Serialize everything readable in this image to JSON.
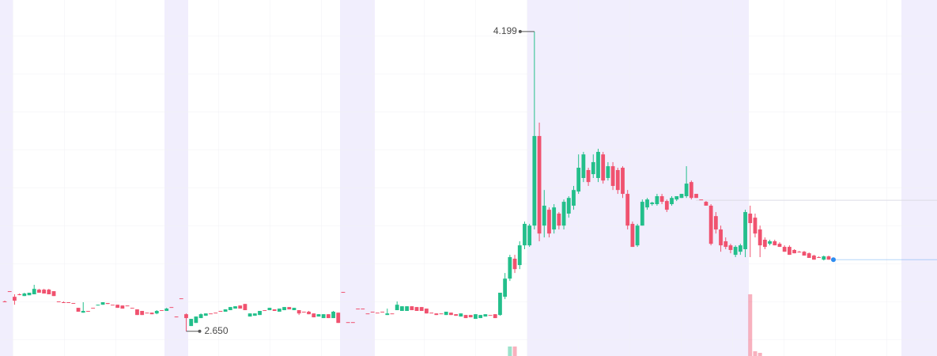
{
  "chart_data": {
    "type": "candlestick",
    "max_label": "4.199",
    "min_label": "2.650",
    "up_color": "#23bf8b",
    "down_color": "#f0526f",
    "last_price_color": "#2d8cf0",
    "reference_line": 3.327,
    "ylim": [
      2.522,
      4.362
    ],
    "volume_ylim": [
      0,
      450
    ],
    "ohlc": [
      [
        2.804,
        2.808,
        2.8,
        2.804
      ],
      [
        2.857,
        2.857,
        2.857,
        2.857
      ],
      [
        2.828,
        2.841,
        2.787,
        2.808
      ],
      [
        2.841,
        2.845,
        2.836,
        2.841
      ],
      [
        2.832,
        2.849,
        2.832,
        2.845
      ],
      [
        2.836,
        2.849,
        2.836,
        2.849
      ],
      [
        2.841,
        2.89,
        2.841,
        2.869
      ],
      [
        2.865,
        2.869,
        2.849,
        2.849
      ],
      [
        2.865,
        2.869,
        2.845,
        2.845
      ],
      [
        2.865,
        2.869,
        2.841,
        2.841
      ],
      [
        2.857,
        2.857,
        2.832,
        2.832
      ],
      [
        2.804,
        2.804,
        2.804,
        2.804
      ],
      [
        2.8,
        2.804,
        2.8,
        2.8
      ],
      [
        2.8,
        2.8,
        2.796,
        2.796
      ],
      [
        2.796,
        2.796,
        2.796,
        2.796
      ],
      [
        2.771,
        2.771,
        2.751,
        2.751
      ],
      [
        2.746,
        2.8,
        2.746,
        2.755
      ],
      [
        2.755,
        2.755,
        2.751,
        2.751
      ],
      [
        2.771,
        2.771,
        2.771,
        2.771
      ],
      [
        2.783,
        2.787,
        2.783,
        2.787
      ],
      [
        2.787,
        2.8,
        2.787,
        2.8
      ],
      [
        2.796,
        2.796,
        2.791,
        2.791
      ],
      [
        2.787,
        2.787,
        2.787,
        2.787
      ],
      [
        2.787,
        2.787,
        2.771,
        2.771
      ],
      [
        2.783,
        2.783,
        2.767,
        2.767
      ],
      [
        2.783,
        2.783,
        2.783,
        2.783
      ],
      [
        2.771,
        2.771,
        2.771,
        2.771
      ],
      [
        2.763,
        2.763,
        2.734,
        2.734
      ],
      [
        2.755,
        2.755,
        2.734,
        2.734
      ],
      [
        2.746,
        2.746,
        2.746,
        2.746
      ],
      [
        2.746,
        2.746,
        2.738,
        2.738
      ],
      [
        2.742,
        2.759,
        2.738,
        2.755
      ],
      [
        2.759,
        2.759,
        2.759,
        2.759
      ],
      [
        2.755,
        2.771,
        2.755,
        2.767
      ],
      [
        2.775,
        2.775,
        2.775,
        2.775
      ],
      [
        2.726,
        2.726,
        2.722,
        2.722
      ],
      [
        2.82,
        2.82,
        2.82,
        2.82
      ],
      [
        2.738,
        2.742,
        2.65,
        2.718
      ],
      [
        2.677,
        2.714,
        2.677,
        2.714
      ],
      [
        2.693,
        2.726,
        2.693,
        2.726
      ],
      [
        2.718,
        2.742,
        2.718,
        2.738
      ],
      [
        2.73,
        2.742,
        2.73,
        2.742
      ],
      [
        2.742,
        2.742,
        2.742,
        2.742
      ],
      [
        2.746,
        2.746,
        2.746,
        2.746
      ],
      [
        2.755,
        2.755,
        2.755,
        2.755
      ],
      [
        2.751,
        2.763,
        2.751,
        2.763
      ],
      [
        2.759,
        2.775,
        2.759,
        2.775
      ],
      [
        2.767,
        2.779,
        2.767,
        2.779
      ],
      [
        2.783,
        2.783,
        2.767,
        2.767
      ],
      [
        2.791,
        2.791,
        2.759,
        2.759
      ],
      [
        2.726,
        2.742,
        2.726,
        2.742
      ],
      [
        2.73,
        2.742,
        2.73,
        2.742
      ],
      [
        2.734,
        2.755,
        2.734,
        2.755
      ],
      [
        2.759,
        2.759,
        2.759,
        2.759
      ],
      [
        2.759,
        2.771,
        2.759,
        2.771
      ],
      [
        2.763,
        2.763,
        2.755,
        2.755
      ],
      [
        2.751,
        2.767,
        2.751,
        2.767
      ],
      [
        2.759,
        2.775,
        2.759,
        2.775
      ],
      [
        2.775,
        2.775,
        2.763,
        2.763
      ],
      [
        2.759,
        2.771,
        2.759,
        2.771
      ],
      [
        2.759,
        2.759,
        2.734,
        2.742
      ],
      [
        2.751,
        2.751,
        2.751,
        2.751
      ],
      [
        2.751,
        2.755,
        2.738,
        2.738
      ],
      [
        2.742,
        2.742,
        2.722,
        2.722
      ],
      [
        2.726,
        2.738,
        2.726,
        2.738
      ],
      [
        2.718,
        2.738,
        2.718,
        2.738
      ],
      [
        2.738,
        2.738,
        2.718,
        2.718
      ],
      [
        2.718,
        2.755,
        2.718,
        2.751
      ],
      [
        2.746,
        2.746,
        2.693,
        2.693
      ],
      [
        2.853,
        2.853,
        2.853,
        2.853
      ],
      [
        2.697,
        2.697,
        2.697,
        2.697
      ],
      [
        2.697,
        2.697,
        2.697,
        2.697
      ],
      [
        2.767,
        2.767,
        2.767,
        2.767
      ],
      [
        2.767,
        2.767,
        2.767,
        2.767
      ],
      [
        2.742,
        2.742,
        2.742,
        2.742
      ],
      [
        2.751,
        2.751,
        2.751,
        2.751
      ],
      [
        2.746,
        2.746,
        2.746,
        2.746
      ],
      [
        2.751,
        2.751,
        2.751,
        2.751
      ],
      [
        2.734,
        2.767,
        2.734,
        2.742
      ],
      [
        2.742,
        2.742,
        2.742,
        2.742
      ],
      [
        2.759,
        2.804,
        2.759,
        2.787
      ],
      [
        2.755,
        2.779,
        2.755,
        2.779
      ],
      [
        2.755,
        2.779,
        2.755,
        2.779
      ],
      [
        2.779,
        2.779,
        2.759,
        2.759
      ],
      [
        2.775,
        2.775,
        2.755,
        2.755
      ],
      [
        2.775,
        2.775,
        2.755,
        2.755
      ],
      [
        2.767,
        2.767,
        2.742,
        2.742
      ],
      [
        2.746,
        2.746,
        2.746,
        2.746
      ],
      [
        2.742,
        2.742,
        2.734,
        2.734
      ],
      [
        2.742,
        2.742,
        2.742,
        2.742
      ],
      [
        2.734,
        2.751,
        2.734,
        2.751
      ],
      [
        2.746,
        2.746,
        2.734,
        2.734
      ],
      [
        2.738,
        2.738,
        2.73,
        2.73
      ],
      [
        2.726,
        2.742,
        2.726,
        2.742
      ],
      [
        2.734,
        2.734,
        2.718,
        2.718
      ],
      [
        2.734,
        2.734,
        2.722,
        2.722
      ],
      [
        2.714,
        2.738,
        2.714,
        2.738
      ],
      [
        2.718,
        2.734,
        2.718,
        2.734
      ],
      [
        2.726,
        2.738,
        2.726,
        2.738
      ],
      [
        2.734,
        2.734,
        2.734,
        2.734
      ],
      [
        2.738,
        2.738,
        2.718,
        2.718
      ],
      [
        2.734,
        2.849,
        2.73,
        2.849
      ],
      [
        2.828,
        2.951,
        2.816,
        2.922
      ],
      [
        2.922,
        3.045,
        2.91,
        3.033
      ],
      [
        3.025,
        3.045,
        2.951,
        2.971
      ],
      [
        2.992,
        3.115,
        2.971,
        3.094
      ],
      [
        3.094,
        3.217,
        3.074,
        3.205
      ],
      [
        3.094,
        3.205,
        3.086,
        3.196
      ],
      [
        3.196,
        4.199,
        3.176,
        3.659
      ],
      [
        3.659,
        3.728,
        3.115,
        3.155
      ],
      [
        3.196,
        3.38,
        3.135,
        3.299
      ],
      [
        3.278,
        3.29,
        3.135,
        3.155
      ],
      [
        3.176,
        3.307,
        3.155,
        3.29
      ],
      [
        3.258,
        3.266,
        3.176,
        3.196
      ],
      [
        3.196,
        3.331,
        3.176,
        3.319
      ],
      [
        3.258,
        3.348,
        3.237,
        3.339
      ],
      [
        3.299,
        3.401,
        3.278,
        3.38
      ],
      [
        3.372,
        3.564,
        3.36,
        3.495
      ],
      [
        3.442,
        3.577,
        3.421,
        3.564
      ],
      [
        3.483,
        3.495,
        3.401,
        3.421
      ],
      [
        3.462,
        3.564,
        3.442,
        3.524
      ],
      [
        3.442,
        3.593,
        3.421,
        3.577
      ],
      [
        3.564,
        3.577,
        3.413,
        3.429
      ],
      [
        3.442,
        3.524,
        3.429,
        3.503
      ],
      [
        3.503,
        3.524,
        3.38,
        3.401
      ],
      [
        3.483,
        3.495,
        3.36,
        3.38
      ],
      [
        3.495,
        3.503,
        3.339,
        3.36
      ],
      [
        3.36,
        3.38,
        3.176,
        3.196
      ],
      [
        3.205,
        3.217,
        3.086,
        3.086
      ],
      [
        3.094,
        3.205,
        3.086,
        3.196
      ],
      [
        3.196,
        3.331,
        3.196,
        3.319
      ],
      [
        3.29,
        3.339,
        3.278,
        3.331
      ],
      [
        3.307,
        3.319,
        3.299,
        3.315
      ],
      [
        3.307,
        3.36,
        3.299,
        3.348
      ],
      [
        3.348,
        3.36,
        3.307,
        3.319
      ],
      [
        3.323,
        3.331,
        3.266,
        3.278
      ],
      [
        3.307,
        3.348,
        3.299,
        3.339
      ],
      [
        3.331,
        3.348,
        3.323,
        3.348
      ],
      [
        3.339,
        3.36,
        3.339,
        3.36
      ],
      [
        3.348,
        3.503,
        3.339,
        3.413
      ],
      [
        3.421,
        3.429,
        3.331,
        3.339
      ],
      [
        3.36,
        3.36,
        3.339,
        3.339
      ],
      [
        3.331,
        3.331,
        3.331,
        3.331
      ],
      [
        3.319,
        3.323,
        3.299,
        3.299
      ],
      [
        3.299,
        3.307,
        3.094,
        3.102
      ],
      [
        3.245,
        3.266,
        3.155,
        3.176
      ],
      [
        3.176,
        3.196,
        3.061,
        3.094
      ],
      [
        3.115,
        3.135,
        3.074,
        3.086
      ],
      [
        3.094,
        3.102,
        3.053,
        3.07
      ],
      [
        3.045,
        3.094,
        3.033,
        3.086
      ],
      [
        3.061,
        3.102,
        3.045,
        3.094
      ],
      [
        3.074,
        3.278,
        3.033,
        3.266
      ],
      [
        3.258,
        3.299,
        3.033,
        3.209
      ],
      [
        3.237,
        3.258,
        3.135,
        3.155
      ],
      [
        3.176,
        3.196,
        3.033,
        3.094
      ],
      [
        3.123,
        3.135,
        3.074,
        3.086
      ],
      [
        3.102,
        3.123,
        3.094,
        3.115
      ],
      [
        3.115,
        3.123,
        3.094,
        3.094
      ],
      [
        3.102,
        3.11,
        3.086,
        3.086
      ],
      [
        3.086,
        3.094,
        3.061,
        3.061
      ],
      [
        3.086,
        3.094,
        3.045,
        3.045
      ],
      [
        3.07,
        3.074,
        3.053,
        3.053
      ],
      [
        3.061,
        3.065,
        3.057,
        3.061
      ],
      [
        3.061,
        3.065,
        3.041,
        3.041
      ],
      [
        3.053,
        3.057,
        3.029,
        3.029
      ],
      [
        3.041,
        3.045,
        3.02,
        3.02
      ],
      [
        3.033,
        3.037,
        3.029,
        3.033
      ],
      [
        3.02,
        3.041,
        3.016,
        3.037
      ],
      [
        3.037,
        3.041,
        3.02,
        3.02
      ]
    ],
    "volume": [
      null,
      null,
      null,
      null,
      null,
      null,
      null,
      null,
      null,
      null,
      null,
      null,
      null,
      null,
      null,
      null,
      null,
      null,
      null,
      null,
      null,
      null,
      null,
      null,
      null,
      null,
      null,
      null,
      null,
      null,
      null,
      null,
      null,
      null,
      null,
      null,
      null,
      null,
      null,
      null,
      null,
      null,
      null,
      null,
      null,
      null,
      null,
      null,
      null,
      null,
      null,
      null,
      null,
      null,
      null,
      null,
      null,
      null,
      null,
      null,
      null,
      null,
      null,
      null,
      null,
      null,
      null,
      null,
      null,
      null,
      null,
      null,
      null,
      null,
      null,
      null,
      null,
      null,
      null,
      null,
      null,
      null,
      null,
      null,
      null,
      null,
      null,
      null,
      null,
      null,
      null,
      null,
      null,
      null,
      null,
      null,
      null,
      null,
      null,
      null,
      null,
      null,
      null,
      12,
      12,
      null,
      null,
      null,
      null,
      null,
      null,
      null,
      null,
      null,
      null,
      null,
      null,
      null,
      null,
      null,
      null,
      null,
      null,
      null,
      null,
      null,
      null,
      null,
      null,
      null,
      null,
      null,
      null,
      null,
      null,
      null,
      null,
      null,
      null,
      null,
      null,
      null,
      null,
      null,
      null,
      null,
      null,
      null,
      null,
      null,
      null,
      null,
      78,
      6,
      4,
      null,
      null,
      null,
      null,
      null,
      null,
      null,
      null,
      null,
      null,
      null,
      null,
      null,
      null
    ]
  }
}
